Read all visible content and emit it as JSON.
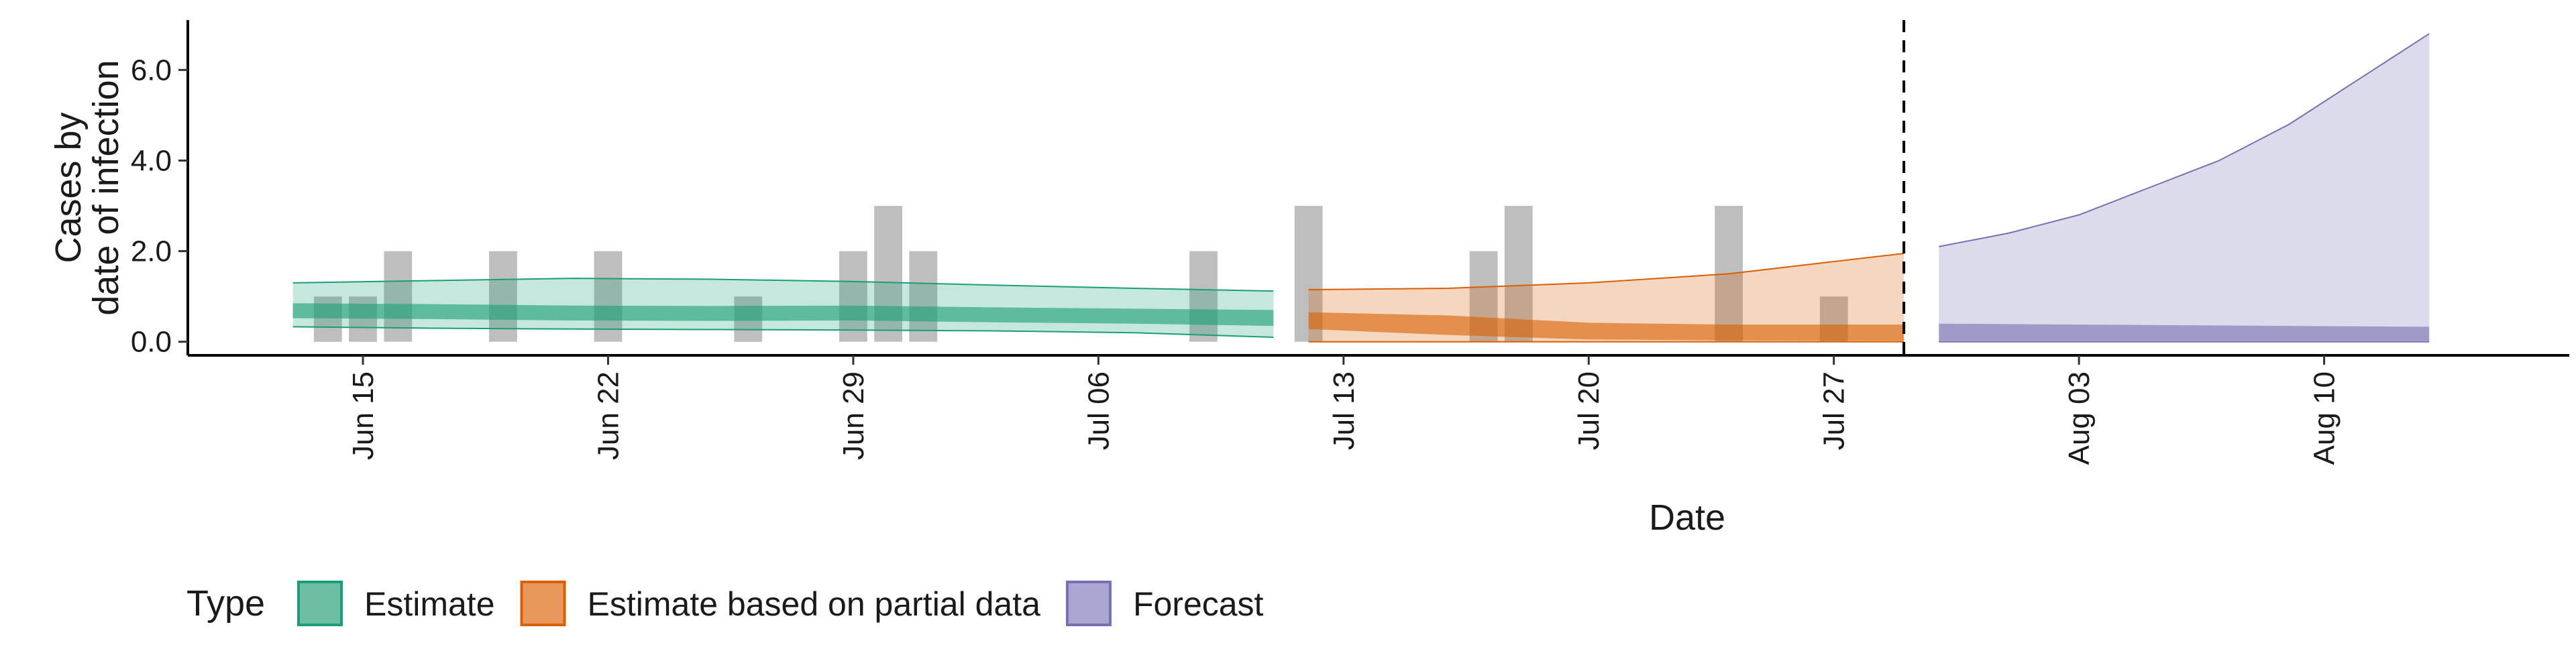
{
  "chart_data": {
    "type": "bar",
    "xlabel": "Date",
    "ylabel": [
      "Cases by",
      "date of infection"
    ],
    "ylim": [
      -0.3,
      7.1
    ],
    "xlim": [
      "2020-06-10",
      "2020-08-17"
    ],
    "x_ticks": [
      {
        "date": "2020-06-15",
        "label": "Jun 15"
      },
      {
        "date": "2020-06-22",
        "label": "Jun 22"
      },
      {
        "date": "2020-06-29",
        "label": "Jun 29"
      },
      {
        "date": "2020-07-06",
        "label": "Jul 06"
      },
      {
        "date": "2020-07-13",
        "label": "Jul 13"
      },
      {
        "date": "2020-07-20",
        "label": "Jul 20"
      },
      {
        "date": "2020-07-27",
        "label": "Jul 27"
      },
      {
        "date": "2020-08-03",
        "label": "Aug 03"
      },
      {
        "date": "2020-08-10",
        "label": "Aug 10"
      }
    ],
    "y_ticks": [
      {
        "value": 0,
        "label": "0.0"
      },
      {
        "value": 2,
        "label": "2.0"
      },
      {
        "value": 4,
        "label": "4.0"
      },
      {
        "value": 6,
        "label": "6.0"
      }
    ],
    "grid": false,
    "reported_cases": [
      {
        "date": "2020-06-14",
        "value": 1
      },
      {
        "date": "2020-06-15",
        "value": 1
      },
      {
        "date": "2020-06-16",
        "value": 2
      },
      {
        "date": "2020-06-19",
        "value": 2
      },
      {
        "date": "2020-06-22",
        "value": 2
      },
      {
        "date": "2020-06-26",
        "value": 1
      },
      {
        "date": "2020-06-29",
        "value": 2
      },
      {
        "date": "2020-06-30",
        "value": 3
      },
      {
        "date": "2020-07-01",
        "value": 2
      },
      {
        "date": "2020-07-09",
        "value": 2
      },
      {
        "date": "2020-07-12",
        "value": 3
      },
      {
        "date": "2020-07-17",
        "value": 2
      },
      {
        "date": "2020-07-18",
        "value": 3
      },
      {
        "date": "2020-07-24",
        "value": 3
      },
      {
        "date": "2020-07-27",
        "value": 1
      }
    ],
    "series": [
      {
        "name": "Estimate",
        "color": "#1b9e77",
        "x": [
          "2020-06-13",
          "2020-06-17",
          "2020-06-21",
          "2020-06-25",
          "2020-06-29",
          "2020-07-03",
          "2020-07-07",
          "2020-07-11"
        ],
        "outer_upper": [
          1.3,
          1.35,
          1.4,
          1.38,
          1.33,
          1.25,
          1.18,
          1.12
        ],
        "outer_lower": [
          0.33,
          0.3,
          0.28,
          0.27,
          0.26,
          0.24,
          0.2,
          0.1
        ],
        "inner_upper": [
          0.85,
          0.83,
          0.8,
          0.79,
          0.8,
          0.76,
          0.73,
          0.7
        ],
        "inner_lower": [
          0.52,
          0.5,
          0.47,
          0.46,
          0.47,
          0.43,
          0.4,
          0.35
        ]
      },
      {
        "name": "Estimate based on partial data",
        "color": "#d95f02",
        "x": [
          "2020-07-12",
          "2020-07-16",
          "2020-07-20",
          "2020-07-24",
          "2020-07-29"
        ],
        "outer_upper": [
          1.15,
          1.18,
          1.3,
          1.5,
          1.95
        ],
        "outer_lower": [
          0.0,
          0.0,
          0.0,
          0.0,
          0.0
        ],
        "inner_upper": [
          0.65,
          0.58,
          0.42,
          0.38,
          0.38
        ],
        "inner_lower": [
          0.28,
          0.15,
          0.05,
          0.03,
          0.02
        ]
      },
      {
        "name": "Forecast",
        "color": "#7570b3",
        "x": [
          "2020-07-30",
          "2020-08-01",
          "2020-08-03",
          "2020-08-05",
          "2020-08-07",
          "2020-08-09",
          "2020-08-11",
          "2020-08-13"
        ],
        "outer_upper": [
          2.1,
          2.4,
          2.8,
          3.4,
          4.0,
          4.8,
          5.8,
          6.8
        ],
        "outer_lower": [
          0.0,
          0.0,
          0.0,
          0.0,
          0.0,
          0.0,
          0.0,
          0.0
        ],
        "inner_upper": [
          0.4,
          0.39,
          0.38,
          0.37,
          0.36,
          0.35,
          0.34,
          0.33
        ],
        "inner_lower": [
          0.02,
          0.02,
          0.02,
          0.02,
          0.02,
          0.02,
          0.02,
          0.02
        ]
      }
    ],
    "vline": {
      "date": "2020-07-29",
      "style": "dashed"
    },
    "legend": {
      "position": "bottom-left",
      "title": "Type",
      "items": [
        {
          "label": "Estimate",
          "fill": "#6cbfa3",
          "border": "#1b9e77"
        },
        {
          "label": "Estimate based on partial data",
          "fill": "#e9975b",
          "border": "#d95f02"
        },
        {
          "label": "Forecast",
          "fill": "#aaa7d3",
          "border": "#7570b3"
        }
      ]
    },
    "bar_color": "#bebebe"
  }
}
